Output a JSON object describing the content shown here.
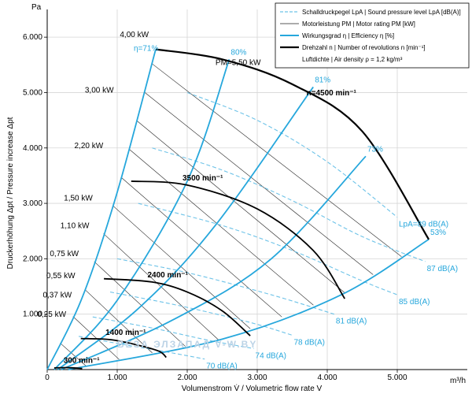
{
  "chart_data": {
    "type": "line",
    "title": "",
    "xlabel": "Volumenstrom V̇ / Volumetric flow rate V",
    "xunit": "m³/h",
    "ylabel": "Druckerhöhung Δpt / Pressure increase Δpt",
    "yunit": "Pa",
    "xlim": [
      0,
      6000
    ],
    "ylim": [
      0,
      6500
    ],
    "x_ticks": [
      {
        "v": 0,
        "label": "0"
      },
      {
        "v": 1000,
        "label": "1.000"
      },
      {
        "v": 2000,
        "label": "2.000"
      },
      {
        "v": 3000,
        "label": "3.000"
      },
      {
        "v": 4000,
        "label": "4.000"
      },
      {
        "v": 5000,
        "label": "5.000"
      }
    ],
    "y_ticks": [
      {
        "v": 1000,
        "label": "1.000"
      },
      {
        "v": 2000,
        "label": "2.000"
      },
      {
        "v": 3000,
        "label": "3.000"
      },
      {
        "v": 4000,
        "label": "4.000"
      },
      {
        "v": 5000,
        "label": "5.000"
      },
      {
        "v": 6000,
        "label": "6.000"
      }
    ],
    "grid": true,
    "legend_position": "top-right",
    "legend": [
      {
        "style": "dashed-blue",
        "text": "Schalldruckpegel LpA | Sound pressure level LpA [dB(A)]"
      },
      {
        "style": "thin-black",
        "text": "Motorleistung PM | Motor rating PM [kW]"
      },
      {
        "style": "blue",
        "text": "Wirkungsgrad η | Efficiency η [%]"
      },
      {
        "style": "thick-black",
        "text": "Drehzahl n | Number of revolutions n [min⁻¹]"
      },
      {
        "style": "none",
        "text": "Luftdichte | Air density ρ = 1,2 kg/m³"
      }
    ],
    "rpm_curves": [
      {
        "label": "n=4500 min⁻¹",
        "points": [
          [
            1550,
            5780
          ],
          [
            2500,
            5600
          ],
          [
            3500,
            5150
          ],
          [
            4500,
            4300
          ],
          [
            5450,
            2350
          ]
        ]
      },
      {
        "label": "3500 min⁻¹",
        "points": [
          [
            1200,
            3400
          ],
          [
            2000,
            3330
          ],
          [
            3000,
            2900
          ],
          [
            3800,
            2150
          ],
          [
            4250,
            1280
          ]
        ]
      },
      {
        "label": "2400 min⁻¹",
        "points": [
          [
            810,
            1640
          ],
          [
            1500,
            1580
          ],
          [
            2000,
            1400
          ],
          [
            2500,
            1060
          ],
          [
            2900,
            610
          ]
        ]
      },
      {
        "label": "1400 min⁻¹",
        "points": [
          [
            480,
            560
          ],
          [
            900,
            540
          ],
          [
            1300,
            440
          ],
          [
            1600,
            330
          ],
          [
            1700,
            220
          ]
        ]
      },
      {
        "label": "300 min⁻¹",
        "points": [
          [
            100,
            30
          ],
          [
            300,
            35
          ],
          [
            500,
            20
          ]
        ]
      }
    ],
    "efficiency_curves": [
      {
        "label": "η=71%",
        "points": [
          [
            0,
            0
          ],
          [
            500,
            1300
          ],
          [
            1000,
            3200
          ],
          [
            1550,
            5780
          ]
        ]
      },
      {
        "label": "80%",
        "points": [
          [
            100,
            0
          ],
          [
            1000,
            1250
          ],
          [
            2000,
            3400
          ],
          [
            2600,
            5600
          ]
        ]
      },
      {
        "label": "81%",
        "points": [
          [
            150,
            0
          ],
          [
            1300,
            1100
          ],
          [
            2400,
            2600
          ],
          [
            3800,
            5100
          ]
        ]
      },
      {
        "label": "73%",
        "points": [
          [
            200,
            0
          ],
          [
            1800,
            900
          ],
          [
            3200,
            2000
          ],
          [
            4550,
            3850
          ]
        ]
      },
      {
        "label": "53%",
        "points": [
          [
            300,
            0
          ],
          [
            2500,
            550
          ],
          [
            4200,
            1350
          ],
          [
            5450,
            2350
          ]
        ]
      }
    ],
    "sound_curves": [
      {
        "label": "89 dB(A)",
        "points": [
          [
            2000,
            5000
          ],
          [
            3000,
            4500
          ],
          [
            4000,
            3750
          ],
          [
            5000,
            2750
          ]
        ]
      },
      {
        "label": "87 dB(A)",
        "points": [
          [
            1500,
            4000
          ],
          [
            2500,
            3600
          ],
          [
            3500,
            3050
          ],
          [
            4500,
            2400
          ],
          [
            5400,
            1950
          ]
        ]
      },
      {
        "label": "85 dB(A)",
        "points": [
          [
            1300,
            3000
          ],
          [
            2500,
            2600
          ],
          [
            3500,
            2150
          ],
          [
            4500,
            1600
          ],
          [
            5000,
            1350
          ]
        ]
      },
      {
        "label": "81 dB(A)",
        "points": [
          [
            1000,
            2000
          ],
          [
            2000,
            1750
          ],
          [
            3200,
            1350
          ],
          [
            4100,
            1000
          ]
        ]
      },
      {
        "label": "78 dB(A)",
        "points": [
          [
            900,
            1400
          ],
          [
            1900,
            1150
          ],
          [
            2900,
            850
          ],
          [
            3500,
            620
          ]
        ]
      },
      {
        "label": "74 dB(A)",
        "points": [
          [
            650,
            950
          ],
          [
            1500,
            750
          ],
          [
            2300,
            530
          ],
          [
            2950,
            380
          ]
        ]
      },
      {
        "label": "70 dB(A)",
        "points": [
          [
            450,
            600
          ],
          [
            1100,
            450
          ],
          [
            1700,
            320
          ],
          [
            2250,
            190
          ]
        ]
      }
    ],
    "motor_rating_labels": [
      {
        "label": "4,00 kW",
        "x": 1450,
        "y": 6000
      },
      {
        "label": "3,00 kW",
        "x": 950,
        "y": 5000
      },
      {
        "label": "2,20 kW",
        "x": 800,
        "y": 4000
      },
      {
        "label": "1,50 kW",
        "x": 650,
        "y": 3050
      },
      {
        "label": "1,10 kW",
        "x": 600,
        "y": 2550
      },
      {
        "label": "0,75 kW",
        "x": 450,
        "y": 2050
      },
      {
        "label": "0,55 kW",
        "x": 400,
        "y": 1650
      },
      {
        "label": "0,37 kW",
        "x": 350,
        "y": 1300
      },
      {
        "label": "0,25 kW",
        "x": 270,
        "y": 950
      },
      {
        "label": "PM=5,50 kW",
        "x": 3050,
        "y": 5500
      }
    ],
    "sound_label_prefix": "LpA=",
    "watermark": "ВЕЗА ЭЛЗАПАД V-W.BY"
  }
}
